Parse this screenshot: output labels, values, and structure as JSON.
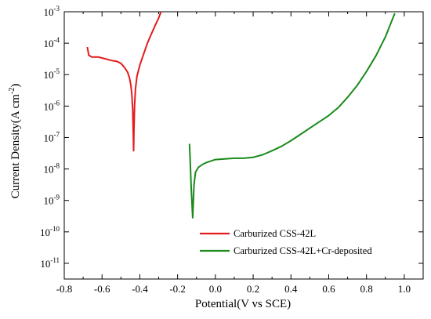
{
  "chart_data": {
    "type": "line",
    "title": "",
    "xlabel": "Potential(V vs SCE)",
    "ylabel": "Current Density(A cm",
    "ylabel_sup": "-2",
    "ylabel_close": ")",
    "xlim": [
      -0.8,
      1.1
    ],
    "ylim": [
      -11.5,
      -3
    ],
    "y_scale": "log10",
    "grid": false,
    "legend_position": "bottom-right",
    "x_ticks": [
      {
        "v": -0.8,
        "label": "-0.8"
      },
      {
        "v": -0.6,
        "label": "-0.6"
      },
      {
        "v": -0.4,
        "label": "-0.4"
      },
      {
        "v": -0.2,
        "label": "-0.2"
      },
      {
        "v": 0.0,
        "label": "0.0"
      },
      {
        "v": 0.2,
        "label": "0.2"
      },
      {
        "v": 0.4,
        "label": "0.4"
      },
      {
        "v": 0.6,
        "label": "0.6"
      },
      {
        "v": 0.8,
        "label": "0.8"
      },
      {
        "v": 1.0,
        "label": "1.0"
      }
    ],
    "y_ticks": [
      {
        "v": -3,
        "base": "10",
        "exp": "-3"
      },
      {
        "v": -4,
        "base": "10",
        "exp": "-4"
      },
      {
        "v": -5,
        "base": "10",
        "exp": "-5"
      },
      {
        "v": -6,
        "base": "10",
        "exp": "-6"
      },
      {
        "v": -7,
        "base": "10",
        "exp": "-7"
      },
      {
        "v": -8,
        "base": "10",
        "exp": "-8"
      },
      {
        "v": -9,
        "base": "10",
        "exp": "-9"
      },
      {
        "v": -10,
        "base": "10",
        "exp": "-10"
      },
      {
        "v": -11,
        "base": "10",
        "exp": "-11"
      }
    ],
    "series": [
      {
        "name": "Carburized CSS-42L",
        "color": "#e41a1c",
        "points": [
          [
            -0.678,
            -4.12
          ],
          [
            -0.67,
            -4.38
          ],
          [
            -0.655,
            -4.44
          ],
          [
            -0.62,
            -4.44
          ],
          [
            -0.58,
            -4.5
          ],
          [
            -0.55,
            -4.55
          ],
          [
            -0.52,
            -4.58
          ],
          [
            -0.5,
            -4.64
          ],
          [
            -0.48,
            -4.78
          ],
          [
            -0.465,
            -4.92
          ],
          [
            -0.455,
            -5.1
          ],
          [
            -0.447,
            -5.35
          ],
          [
            -0.442,
            -5.65
          ],
          [
            -0.438,
            -6.1
          ],
          [
            -0.435,
            -6.8
          ],
          [
            -0.433,
            -7.42
          ],
          [
            -0.431,
            -6.8
          ],
          [
            -0.428,
            -6.0
          ],
          [
            -0.423,
            -5.45
          ],
          [
            -0.415,
            -5.05
          ],
          [
            -0.4,
            -4.7
          ],
          [
            -0.38,
            -4.35
          ],
          [
            -0.36,
            -4.0
          ],
          [
            -0.34,
            -3.72
          ],
          [
            -0.32,
            -3.45
          ],
          [
            -0.3,
            -3.2
          ],
          [
            -0.288,
            -3.0
          ]
        ]
      },
      {
        "name": "Carburized CSS-42L+Cr-deposited",
        "color": "#1a8a1a",
        "points": [
          [
            -0.137,
            -7.2
          ],
          [
            -0.133,
            -7.8
          ],
          [
            -0.128,
            -8.6
          ],
          [
            -0.123,
            -9.2
          ],
          [
            -0.12,
            -9.55
          ],
          [
            -0.117,
            -9.1
          ],
          [
            -0.113,
            -8.5
          ],
          [
            -0.105,
            -8.1
          ],
          [
            -0.09,
            -7.95
          ],
          [
            -0.07,
            -7.86
          ],
          [
            -0.05,
            -7.8
          ],
          [
            0.0,
            -7.7
          ],
          [
            0.05,
            -7.68
          ],
          [
            0.1,
            -7.66
          ],
          [
            0.15,
            -7.66
          ],
          [
            0.2,
            -7.63
          ],
          [
            0.25,
            -7.55
          ],
          [
            0.3,
            -7.42
          ],
          [
            0.35,
            -7.28
          ],
          [
            0.4,
            -7.1
          ],
          [
            0.45,
            -6.9
          ],
          [
            0.5,
            -6.7
          ],
          [
            0.55,
            -6.5
          ],
          [
            0.6,
            -6.3
          ],
          [
            0.65,
            -6.05
          ],
          [
            0.7,
            -5.72
          ],
          [
            0.75,
            -5.35
          ],
          [
            0.8,
            -4.9
          ],
          [
            0.85,
            -4.4
          ],
          [
            0.9,
            -3.8
          ],
          [
            0.93,
            -3.35
          ],
          [
            0.95,
            -3.05
          ]
        ]
      }
    ]
  }
}
